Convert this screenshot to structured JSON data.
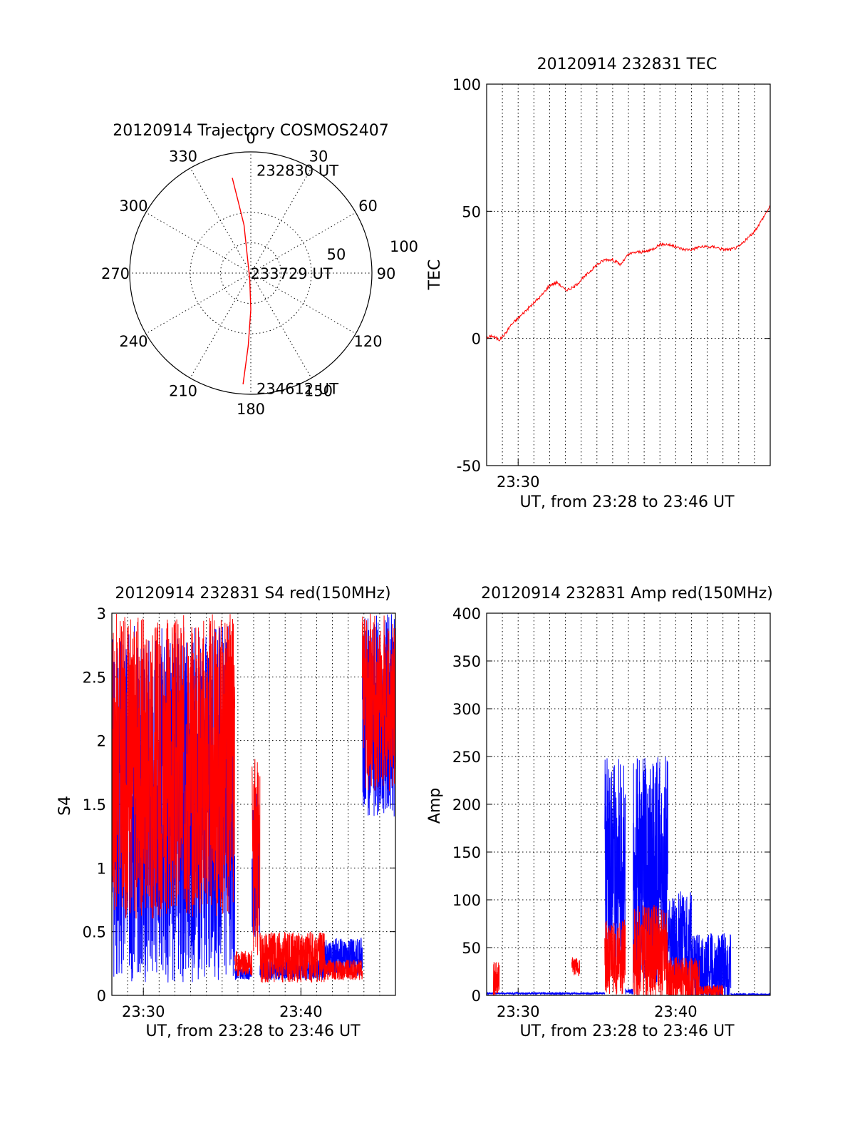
{
  "chart_data": [
    {
      "id": "trajectory",
      "type": "polar",
      "title": "20120914 Trajectory COSMOS2407",
      "angle_labels": [
        "0",
        "30",
        "60",
        "90",
        "120",
        "150",
        "180",
        "210",
        "240",
        "270",
        "300",
        "330"
      ],
      "radius_labels": [
        "50",
        "100"
      ],
      "rlim": [
        0,
        100
      ],
      "grid": true,
      "series": [
        {
          "color": "#ff0000",
          "points": [
            [
              349,
              80
            ],
            [
              350,
              60
            ],
            [
              352,
              40
            ],
            [
              190,
              5
            ],
            [
              180,
              30
            ],
            [
              182,
              60
            ],
            [
              184,
              92
            ]
          ]
        }
      ],
      "annotations": [
        {
          "text": "232830 UT",
          "az": 0,
          "el": 85
        },
        {
          "text": "233729 UT",
          "az": 270,
          "el": 5
        },
        {
          "text": "234612 UT",
          "az": 180,
          "el": 95
        }
      ]
    },
    {
      "id": "tec",
      "type": "line",
      "title": "20120914 232831 TEC",
      "ylabel": "TEC",
      "xlabel": "UT, from 23:28 to 23:46 UT",
      "xlim": [
        0,
        18
      ],
      "ylim": [
        -50,
        100
      ],
      "yticks": [
        -50,
        0,
        50,
        100
      ],
      "xtick_labels": [
        {
          "x": 2,
          "label": "23:30"
        }
      ],
      "grid": true,
      "series": [
        {
          "color": "#ff0000",
          "x": [
            0,
            0.3,
            0.5,
            0.8,
            1.2,
            1.5,
            2,
            2.5,
            3,
            3.5,
            4,
            4.5,
            5,
            5.5,
            6,
            6.5,
            7,
            7.5,
            8,
            8.5,
            9,
            9.5,
            10,
            10.5,
            11,
            11.5,
            12,
            12.5,
            13,
            13.5,
            14,
            14.5,
            15,
            15.5,
            16,
            16.5,
            17,
            17.5,
            18
          ],
          "y": [
            0,
            1,
            0.5,
            -0.5,
            2,
            5,
            8,
            11,
            14,
            17,
            21,
            22,
            19,
            20,
            23,
            26,
            29,
            31,
            31,
            29,
            33,
            34,
            34,
            35,
            37,
            37,
            36,
            35,
            35,
            36,
            36,
            36,
            35,
            35,
            36,
            39,
            42,
            47,
            52
          ]
        }
      ]
    },
    {
      "id": "s4",
      "type": "line",
      "title": "20120914 232831 S4 red(150MHz)",
      "ylabel": "S4",
      "xlabel": "UT, from 23:28 to 23:46 UT",
      "xlim": [
        0,
        18
      ],
      "ylim": [
        0,
        3
      ],
      "yticks": [
        0,
        0.5,
        1,
        1.5,
        2,
        2.5,
        3
      ],
      "ytick_labels": [
        "0",
        "0.5",
        "1",
        "1.5",
        "2",
        "2.5",
        "3"
      ],
      "xtick_labels": [
        {
          "x": 2,
          "label": "23:30"
        },
        {
          "x": 12,
          "label": "23:40"
        }
      ],
      "grid": true,
      "series": [
        {
          "color": "#0000ff",
          "segments": [
            {
              "x0": 0,
              "x1": 7.8,
              "base": 1.5,
              "amp": 1.4,
              "seed": 3
            },
            {
              "x0": 7.8,
              "x1": 8.9,
              "base": 0.17,
              "amp": 0.05,
              "seed": 5
            },
            {
              "x0": 8.9,
              "x1": 9.4,
              "base": 1.0,
              "amp": 0.6,
              "seed": 7
            },
            {
              "x0": 9.4,
              "x1": 13.5,
              "base": 0.2,
              "amp": 0.08,
              "seed": 9
            },
            {
              "x0": 13.5,
              "x1": 15.9,
              "base": 0.3,
              "amp": 0.15,
              "seed": 11
            },
            {
              "x0": 15.9,
              "x1": 18,
              "base": 2.2,
              "amp": 0.8,
              "seed": 13
            }
          ]
        },
        {
          "color": "#ff0000",
          "segments": [
            {
              "x0": 0,
              "x1": 7.8,
              "base": 1.8,
              "amp": 1.2,
              "seed": 17
            },
            {
              "x0": 7.8,
              "x1": 8.9,
              "base": 0.25,
              "amp": 0.1,
              "seed": 19
            },
            {
              "x0": 8.9,
              "x1": 9.4,
              "base": 1.1,
              "amp": 0.8,
              "seed": 23
            },
            {
              "x0": 9.4,
              "x1": 13.5,
              "base": 0.3,
              "amp": 0.2,
              "seed": 29
            },
            {
              "x0": 13.5,
              "x1": 15.9,
              "base": 0.2,
              "amp": 0.08,
              "seed": 31
            },
            {
              "x0": 15.9,
              "x1": 18,
              "base": 2.3,
              "amp": 0.7,
              "seed": 37
            }
          ]
        }
      ]
    },
    {
      "id": "amp",
      "type": "line",
      "title": "20120914 232831 Amp red(150MHz)",
      "ylabel": "Amp",
      "xlabel": "UT, from 23:28 to 23:46 UT",
      "xlim": [
        0,
        18
      ],
      "ylim": [
        0,
        400
      ],
      "yticks": [
        0,
        50,
        100,
        150,
        200,
        250,
        300,
        350,
        400
      ],
      "ytick_labels": [
        "0",
        "50",
        "100",
        "150",
        "200",
        "250",
        "300",
        "350",
        "400"
      ],
      "xtick_labels": [
        {
          "x": 2,
          "label": "23:30"
        },
        {
          "x": 12,
          "label": "23:40"
        }
      ],
      "grid": true,
      "series": [
        {
          "color": "#0000ff",
          "segments": [
            {
              "x0": 0,
              "x1": 7.5,
              "base": 2,
              "amp": 1,
              "seed": 41
            },
            {
              "x0": 7.5,
              "x1": 8.8,
              "base": 140,
              "amp": 110,
              "seed": 43
            },
            {
              "x0": 8.8,
              "x1": 9.3,
              "base": 4,
              "amp": 3,
              "seed": 47
            },
            {
              "x0": 9.3,
              "x1": 11.5,
              "base": 130,
              "amp": 120,
              "seed": 53
            },
            {
              "x0": 11.5,
              "x1": 13,
              "base": 60,
              "amp": 50,
              "seed": 59
            },
            {
              "x0": 13,
              "x1": 15.5,
              "base": 25,
              "amp": 40,
              "seed": 61
            },
            {
              "x0": 15.5,
              "x1": 18,
              "base": 1,
              "amp": 1,
              "seed": 67
            }
          ]
        },
        {
          "color": "#ff0000",
          "segments": [
            {
              "x0": 0.4,
              "x1": 0.8,
              "base": 15,
              "amp": 20,
              "seed": 71
            },
            {
              "x0": 5.4,
              "x1": 5.9,
              "base": 30,
              "amp": 10,
              "seed": 73
            },
            {
              "x0": 7.5,
              "x1": 8.8,
              "base": 40,
              "amp": 40,
              "seed": 79
            },
            {
              "x0": 9.3,
              "x1": 11.5,
              "base": 45,
              "amp": 50,
              "seed": 83
            },
            {
              "x0": 11.5,
              "x1": 13.5,
              "base": 15,
              "amp": 25,
              "seed": 89
            },
            {
              "x0": 13.5,
              "x1": 15.0,
              "base": 5,
              "amp": 6,
              "seed": 97
            }
          ]
        }
      ]
    }
  ]
}
